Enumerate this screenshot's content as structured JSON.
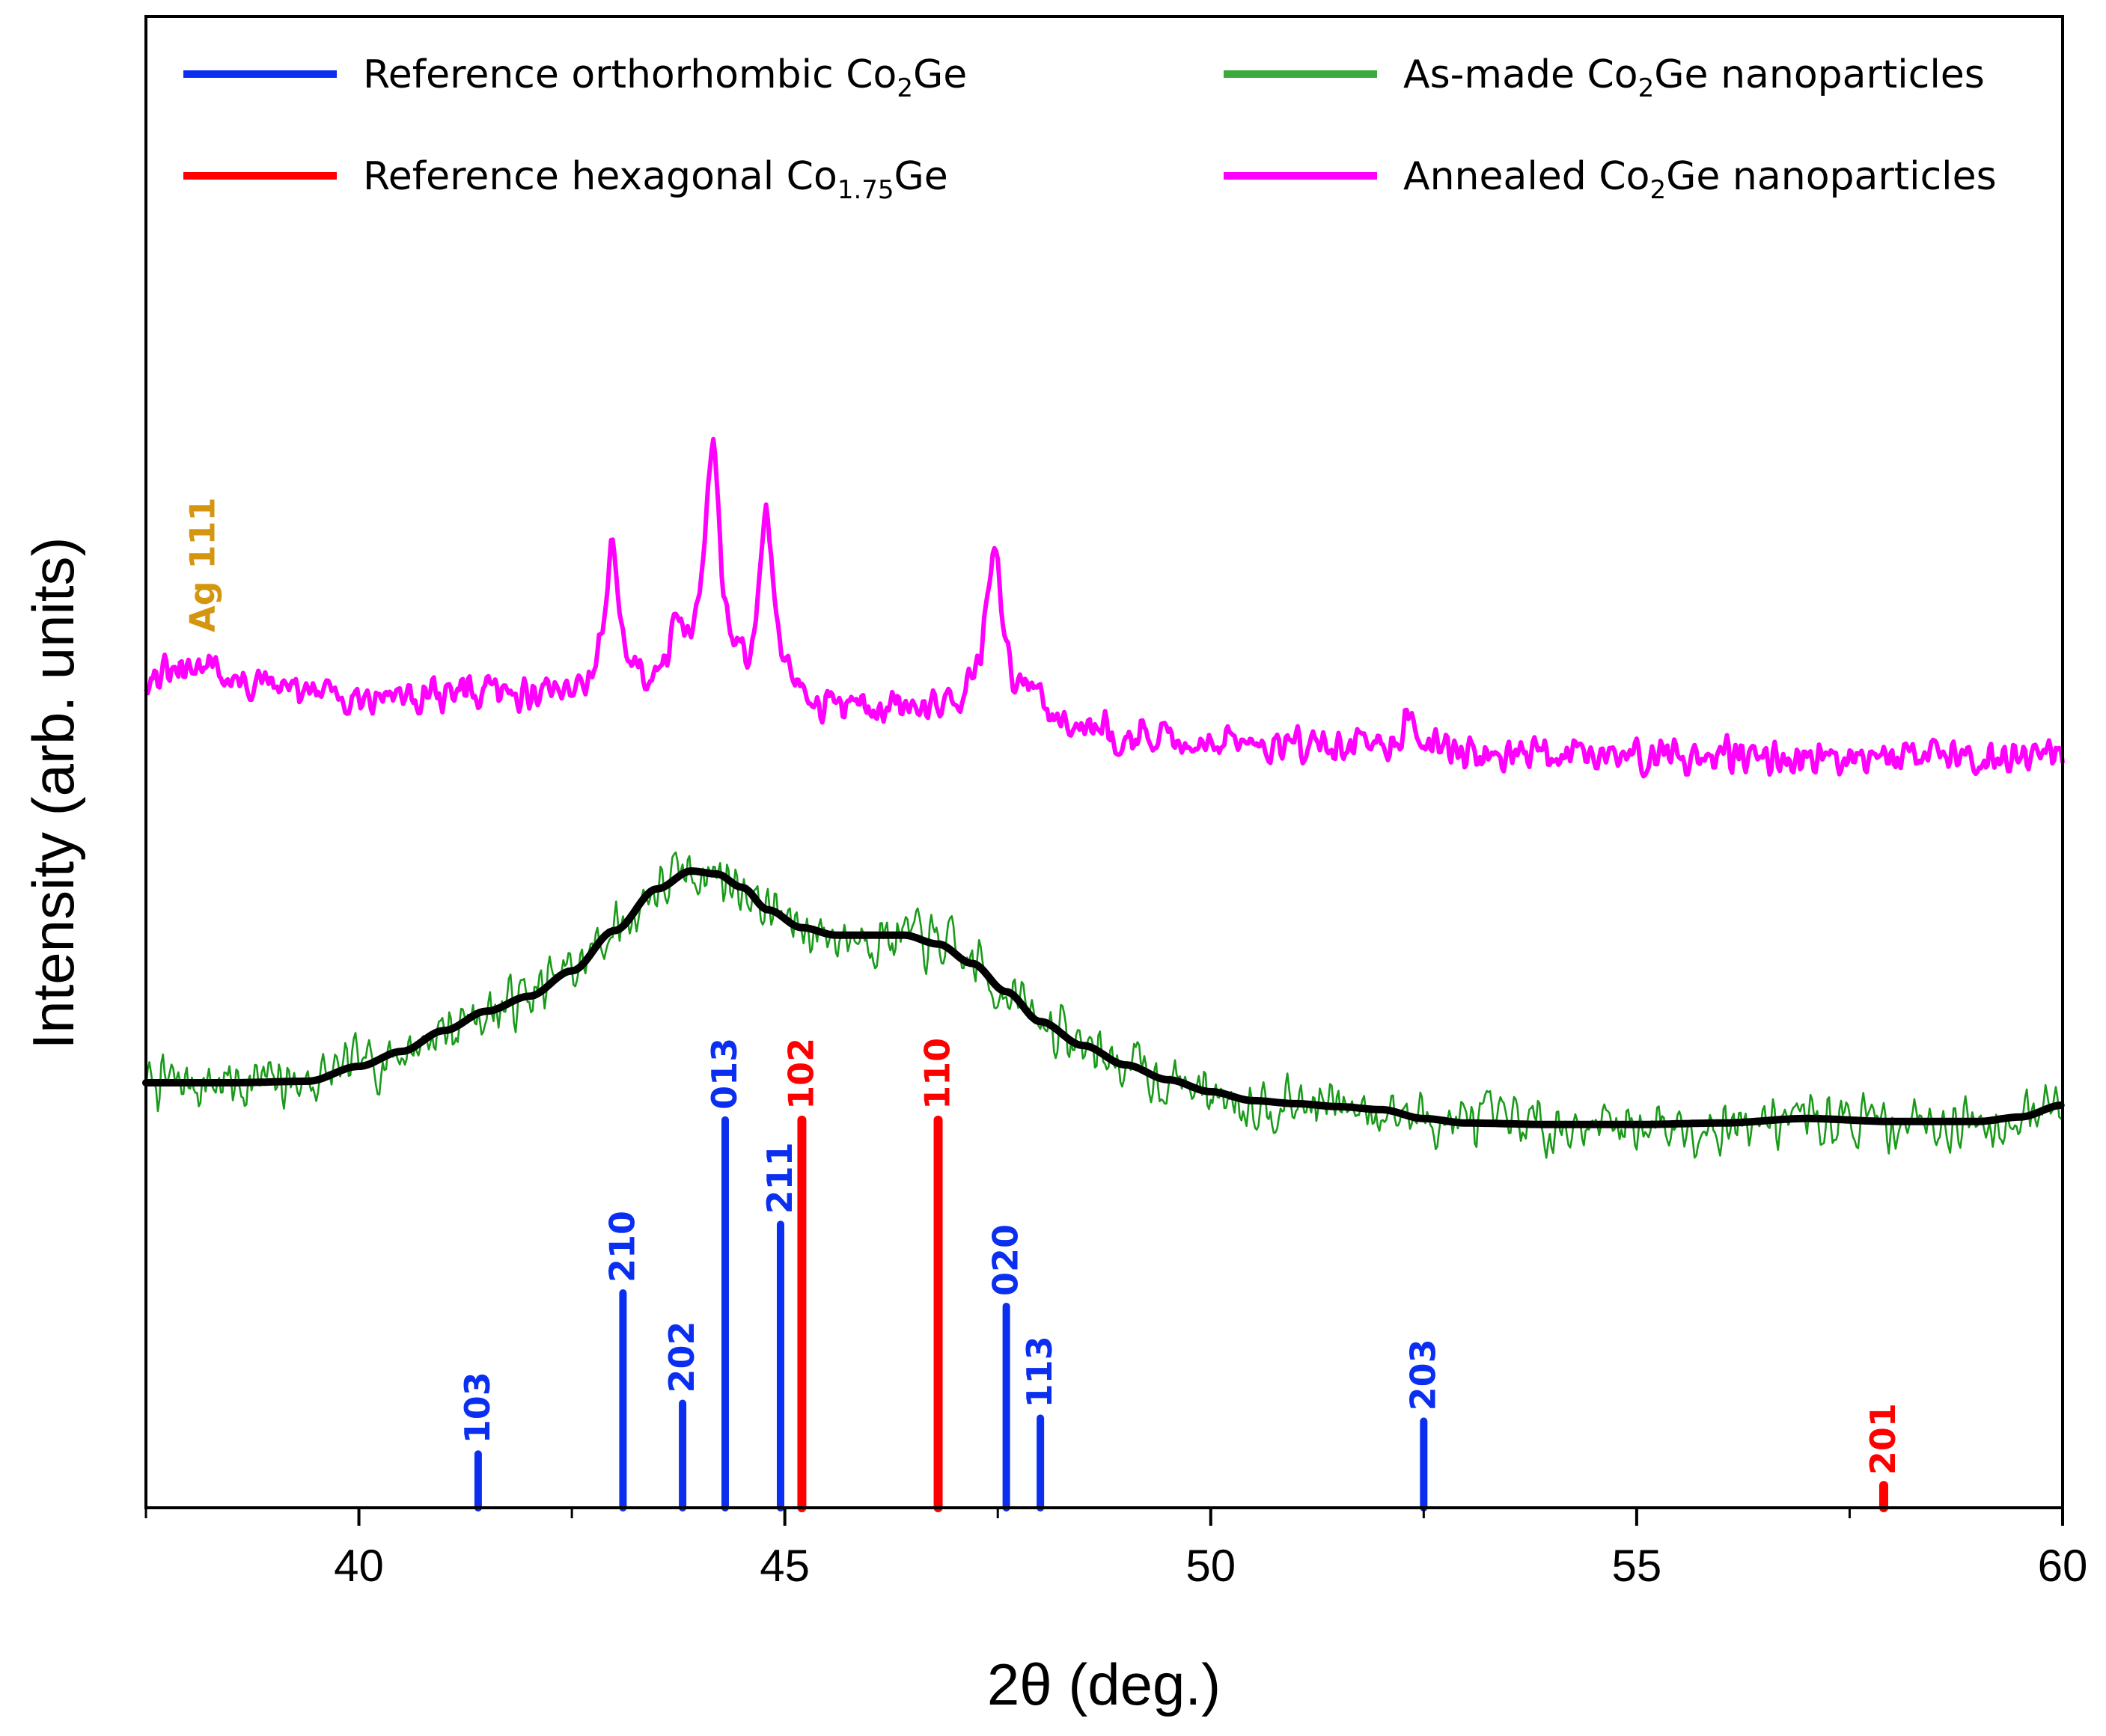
{
  "chart_data": {
    "type": "line",
    "title": "",
    "xlabel": "2θ (deg.)",
    "ylabel": "Intensity (arb. units)",
    "xlim": [
      37.5,
      60
    ],
    "ylim": [
      0,
      100
    ],
    "x_ticks": [
      40,
      45,
      50,
      55,
      60
    ],
    "x_minor_ticks": [
      37.5,
      42.5,
      47.5,
      52.5,
      57.5
    ],
    "grid": false,
    "legend": {
      "placement": "top",
      "entries": [
        {
          "id": "ortho",
          "prefix": "Reference orthorhombic Co",
          "sub": "2",
          "suffix": "Ge",
          "color": "#0b2ff0"
        },
        {
          "id": "hex",
          "prefix": "Reference hexagonal Co",
          "sub": "1.75",
          "suffix": "Ge",
          "color": "#ff0000"
        },
        {
          "id": "asmade",
          "prefix": "As-made Co",
          "sub": "2",
          "suffix": "Ge nanoparticles",
          "color": "#3aaa3a"
        },
        {
          "id": "annealed",
          "prefix": "Annealed Co",
          "sub": "2",
          "suffix": "Ge nanoparticles",
          "color": "#ff00ff"
        }
      ]
    },
    "colors": {
      "ortho": "#0b2ff0",
      "hex": "#ff0000",
      "asmade": "#1a9a1a",
      "fit": "#000000",
      "annealed": "#ff00ff",
      "ag": "#d4950f"
    },
    "reference_orthorhombic": [
      {
        "x": 41.4,
        "height": 3.6,
        "label": "103"
      },
      {
        "x": 43.1,
        "height": 14.4,
        "label": "210"
      },
      {
        "x": 43.8,
        "height": 7.0,
        "label": "202"
      },
      {
        "x": 44.3,
        "height": 26.0,
        "label": "013"
      },
      {
        "x": 44.95,
        "height": 19.0,
        "label": "211"
      },
      {
        "x": 47.6,
        "height": 13.5,
        "label": "020"
      },
      {
        "x": 48.0,
        "height": 6.0,
        "label": "113"
      },
      {
        "x": 52.5,
        "height": 5.8,
        "label": "203"
      }
    ],
    "reference_hexagonal": [
      {
        "x": 45.2,
        "height": 26.0,
        "label": "102"
      },
      {
        "x": 46.8,
        "height": 26.0,
        "label": "110"
      },
      {
        "x": 57.9,
        "height": 1.5,
        "label": "201"
      }
    ],
    "as_made_smooth": {
      "x": [
        37.5,
        38.5,
        39.4,
        40.0,
        40.5,
        41.0,
        41.5,
        42.0,
        42.5,
        43.0,
        43.5,
        43.9,
        44.2,
        44.5,
        44.8,
        45.2,
        45.6,
        46.0,
        46.4,
        46.8,
        47.2,
        47.6,
        48.0,
        48.5,
        49.0,
        49.5,
        50.0,
        50.5,
        51.0,
        51.5,
        52.0,
        52.5,
        53.0,
        54.0,
        55.0,
        56.0,
        57.0,
        58.0,
        59.0,
        59.5,
        60.0
      ],
      "y": [
        28.5,
        28.5,
        28.6,
        29.6,
        30.6,
        32.0,
        33.3,
        34.3,
        36.0,
        38.7,
        41.5,
        42.7,
        42.5,
        41.6,
        40.1,
        38.9,
        38.4,
        38.4,
        38.4,
        37.8,
        36.5,
        34.6,
        32.6,
        31.0,
        29.7,
        28.7,
        27.9,
        27.3,
        27.1,
        26.9,
        26.7,
        26.1,
        25.8,
        25.7,
        25.7,
        25.8,
        26.1,
        25.9,
        25.9,
        26.2,
        27.0
      ]
    },
    "as_made_noise_amplitude": 1.3,
    "annealed": {
      "baseline": {
        "x": [
          37.5,
          40.0,
          42.0,
          43.5,
          45.0,
          46.0,
          47.0,
          48.0,
          49.0,
          50.0,
          52.0,
          54.0,
          56.0,
          58.0,
          60.0
        ],
        "y": [
          55.8,
          54.5,
          54.5,
          54.5,
          53.9,
          53.3,
          53.6,
          53.0,
          51.7,
          51.4,
          50.9,
          50.4,
          50.4,
          50.5,
          50.6
        ]
      },
      "peaks": [
        {
          "x": 38.2,
          "intensity": 1.6,
          "width": 0.09
        },
        {
          "x": 42.97,
          "intensity": 9.3,
          "width": 0.11
        },
        {
          "x": 43.72,
          "intensity": 4.3,
          "width": 0.08
        },
        {
          "x": 44.15,
          "intensity": 15.8,
          "width": 0.12
        },
        {
          "x": 44.78,
          "intensity": 12.4,
          "width": 0.1
        },
        {
          "x": 47.45,
          "intensity": 10.8,
          "width": 0.12
        },
        {
          "x": 47.95,
          "intensity": 1.8,
          "width": 0.08
        },
        {
          "x": 52.35,
          "intensity": 2.5,
          "width": 0.09
        }
      ],
      "noise_amplitude": 0.8,
      "annotation": {
        "text": "Ag 111",
        "x": 38.2
      }
    }
  }
}
